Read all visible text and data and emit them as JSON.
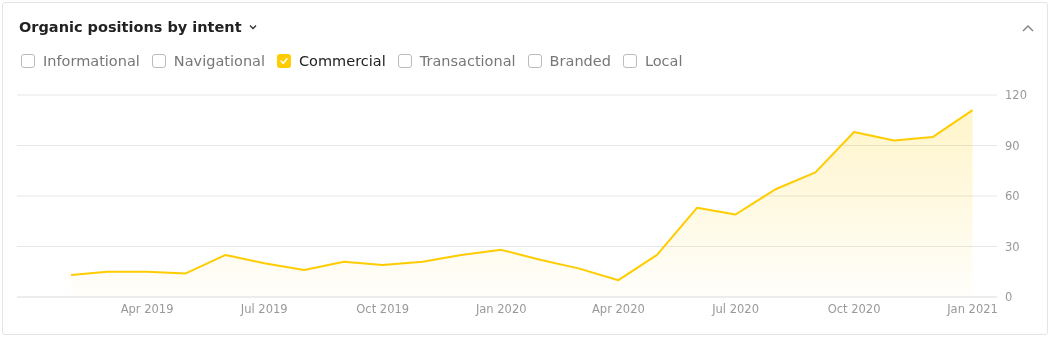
{
  "chart_data": {
    "type": "area",
    "title": "Organic positions by intent",
    "legend": "top left",
    "grid": "y",
    "marker": "none",
    "x": [
      "2019-02",
      "2019-03",
      "2019-04",
      "2019-05",
      "2019-06",
      "2019-07",
      "2019-08",
      "2019-09",
      "2019-10",
      "2019-11",
      "2019-12",
      "2020-01",
      "2020-02",
      "2020-03",
      "2020-04",
      "2020-05",
      "2020-06",
      "2020-07",
      "2020-08",
      "2020-09",
      "2020-10",
      "2020-11",
      "2020-12",
      "2021-01"
    ],
    "series": [
      {
        "name": "Informational",
        "values": [
          null,
          null,
          null,
          null,
          null,
          null,
          null,
          null,
          null,
          null,
          null,
          null,
          null,
          null,
          null,
          null,
          null,
          null,
          null,
          null,
          null,
          null,
          null,
          null
        ]
      },
      {
        "name": "Navigational",
        "values": [
          null,
          null,
          null,
          null,
          null,
          null,
          null,
          null,
          null,
          null,
          null,
          null,
          null,
          null,
          null,
          null,
          null,
          null,
          null,
          null,
          null,
          null,
          null,
          null
        ]
      },
      {
        "name": "Commercial",
        "color": "#ffcc00",
        "values": [
          13,
          15,
          15,
          14,
          25,
          20,
          16,
          21,
          19,
          21,
          25,
          28,
          22,
          17,
          10,
          25,
          53,
          49,
          64,
          74,
          98,
          93,
          95,
          111
        ]
      },
      {
        "name": "Transactional",
        "values": [
          null,
          null,
          null,
          null,
          null,
          null,
          null,
          null,
          null,
          null,
          null,
          null,
          null,
          null,
          null,
          null,
          null,
          null,
          null,
          null,
          null,
          null,
          null,
          null
        ]
      },
      {
        "name": "Branded",
        "values": [
          null,
          null,
          null,
          null,
          null,
          null,
          null,
          null,
          null,
          null,
          null,
          null,
          null,
          null,
          null,
          null,
          null,
          null,
          null,
          null,
          null,
          null,
          null,
          null
        ]
      },
      {
        "name": "Local",
        "values": [
          null,
          null,
          null,
          null,
          null,
          null,
          null,
          null,
          null,
          null,
          null,
          null,
          null,
          null,
          null,
          null,
          null,
          null,
          null,
          null,
          null,
          null,
          null,
          null
        ]
      }
    ],
    "xlim": [
      "2018-12-21",
      "2021-01-20"
    ],
    "xticks": [
      {
        "value": "2019-04",
        "label": "Apr 2019"
      },
      {
        "value": "2019-07",
        "label": "Jul 2019"
      },
      {
        "value": "2019-10",
        "label": "Oct 2019"
      },
      {
        "value": "2020-01",
        "label": "Jan 2020"
      },
      {
        "value": "2020-04",
        "label": "Apr 2020"
      },
      {
        "value": "2020-07",
        "label": "Jul 2020"
      },
      {
        "value": "2020-10",
        "label": "Oct 2020"
      },
      {
        "value": "2021-01",
        "label": "Jan 2021"
      }
    ],
    "ylim": [
      0,
      120
    ],
    "yticks": [
      0,
      30,
      60,
      90,
      120
    ]
  }
}
